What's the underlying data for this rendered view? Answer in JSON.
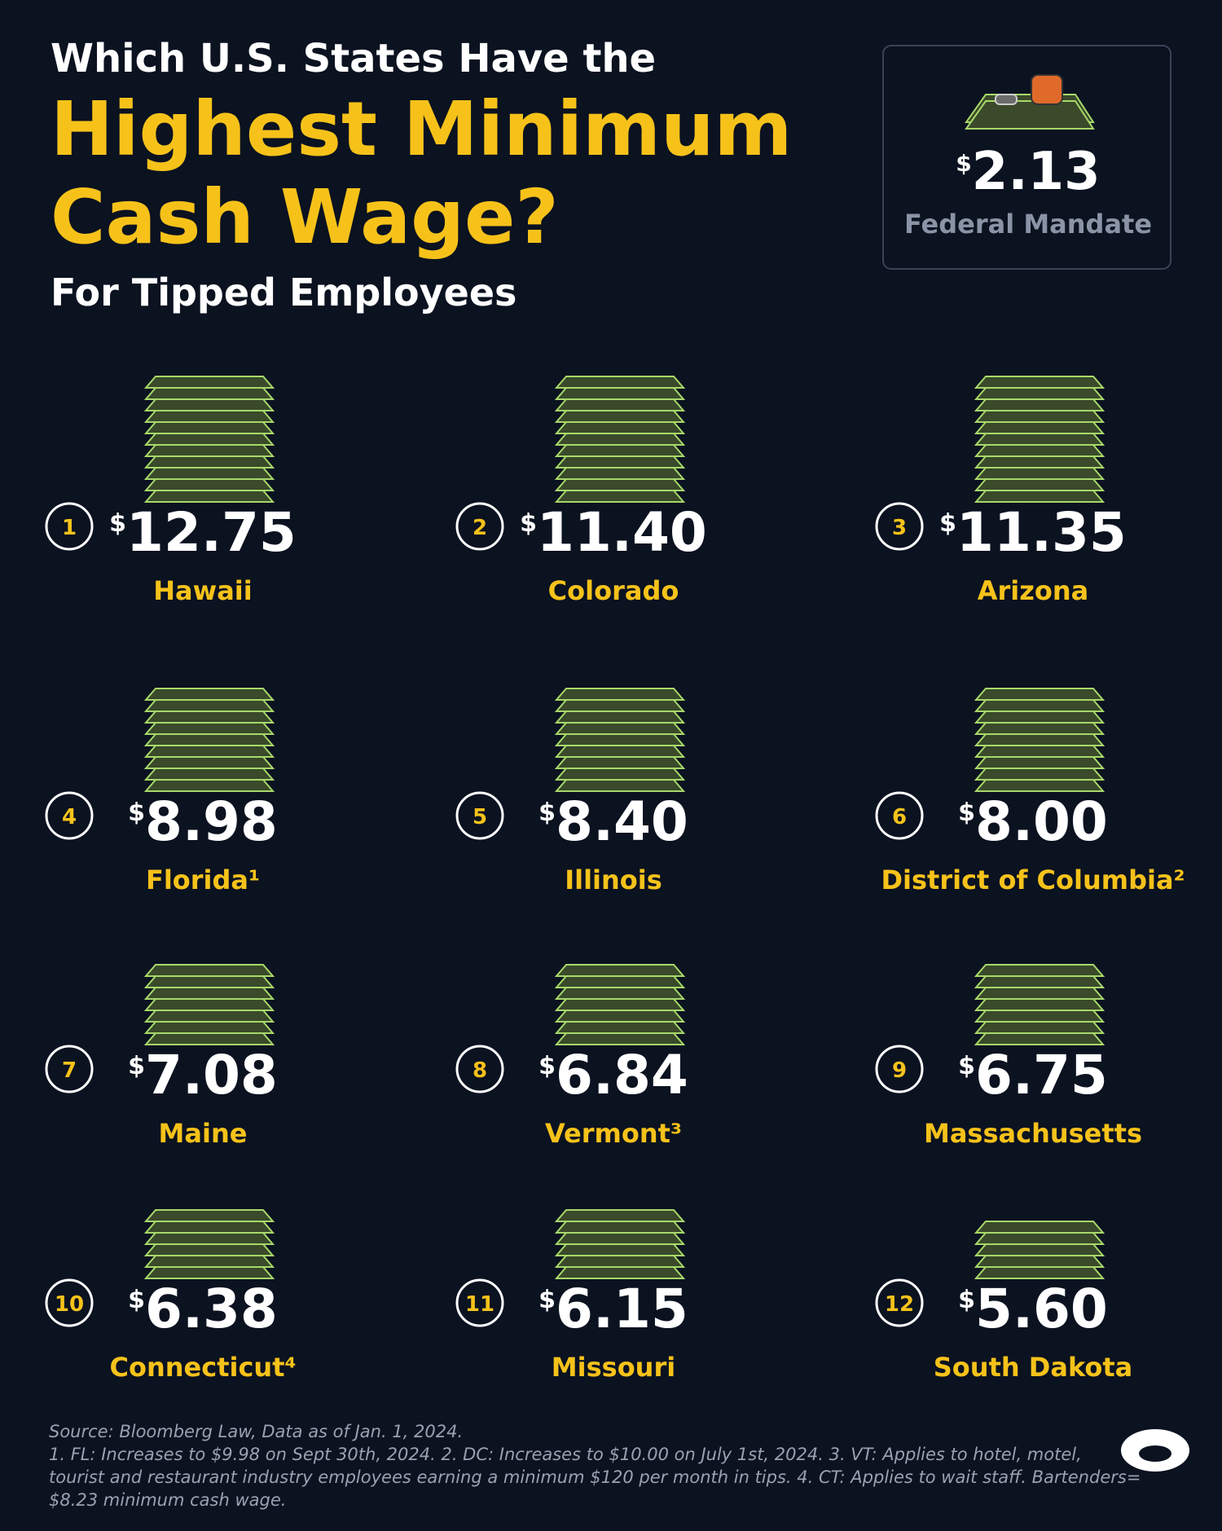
{
  "header": {
    "title_line1": "Which U.S. States Have the",
    "title_highlight_line1": "Highest Minimum",
    "title_highlight_line2": "Cash Wage?",
    "subtitle": "For Tipped Employees"
  },
  "currency_symbol": "$",
  "federal": {
    "amount": "2.13",
    "label": "Federal Mandate"
  },
  "items": [
    {
      "rank": "1",
      "amount": "12.75",
      "state": "Hawaii"
    },
    {
      "rank": "2",
      "amount": "11.40",
      "state": "Colorado"
    },
    {
      "rank": "3",
      "amount": "11.35",
      "state": "Arizona"
    },
    {
      "rank": "4",
      "amount": "8.98",
      "state": "Florida¹"
    },
    {
      "rank": "5",
      "amount": "8.40",
      "state": "Illinois"
    },
    {
      "rank": "6",
      "amount": "8.00",
      "state": "District of Columbia²"
    },
    {
      "rank": "7",
      "amount": "7.08",
      "state": "Maine"
    },
    {
      "rank": "8",
      "amount": "6.84",
      "state": "Vermont³"
    },
    {
      "rank": "9",
      "amount": "6.75",
      "state": "Massachusetts"
    },
    {
      "rank": "10",
      "amount": "6.38",
      "state": "Connecticut⁴"
    },
    {
      "rank": "11",
      "amount": "6.15",
      "state": "Missouri"
    },
    {
      "rank": "12",
      "amount": "5.60",
      "state": "South Dakota"
    }
  ],
  "footer": {
    "source": "Source: Bloomberg Law, Data as of Jan. 1, 2024.",
    "notes": [
      "1. FL: Increases to $9.98 on Sept 30th, 2024. 2. DC: Increases to $10.00 on July 1st, 2024. 3. VT: Applies to hotel, motel,",
      "tourist and restaurant industry employees earning a minimum $120 per month in tips. 4. CT: Applies to wait staff. Bartenders=",
      "$8.23 minimum cash wage."
    ]
  }
}
